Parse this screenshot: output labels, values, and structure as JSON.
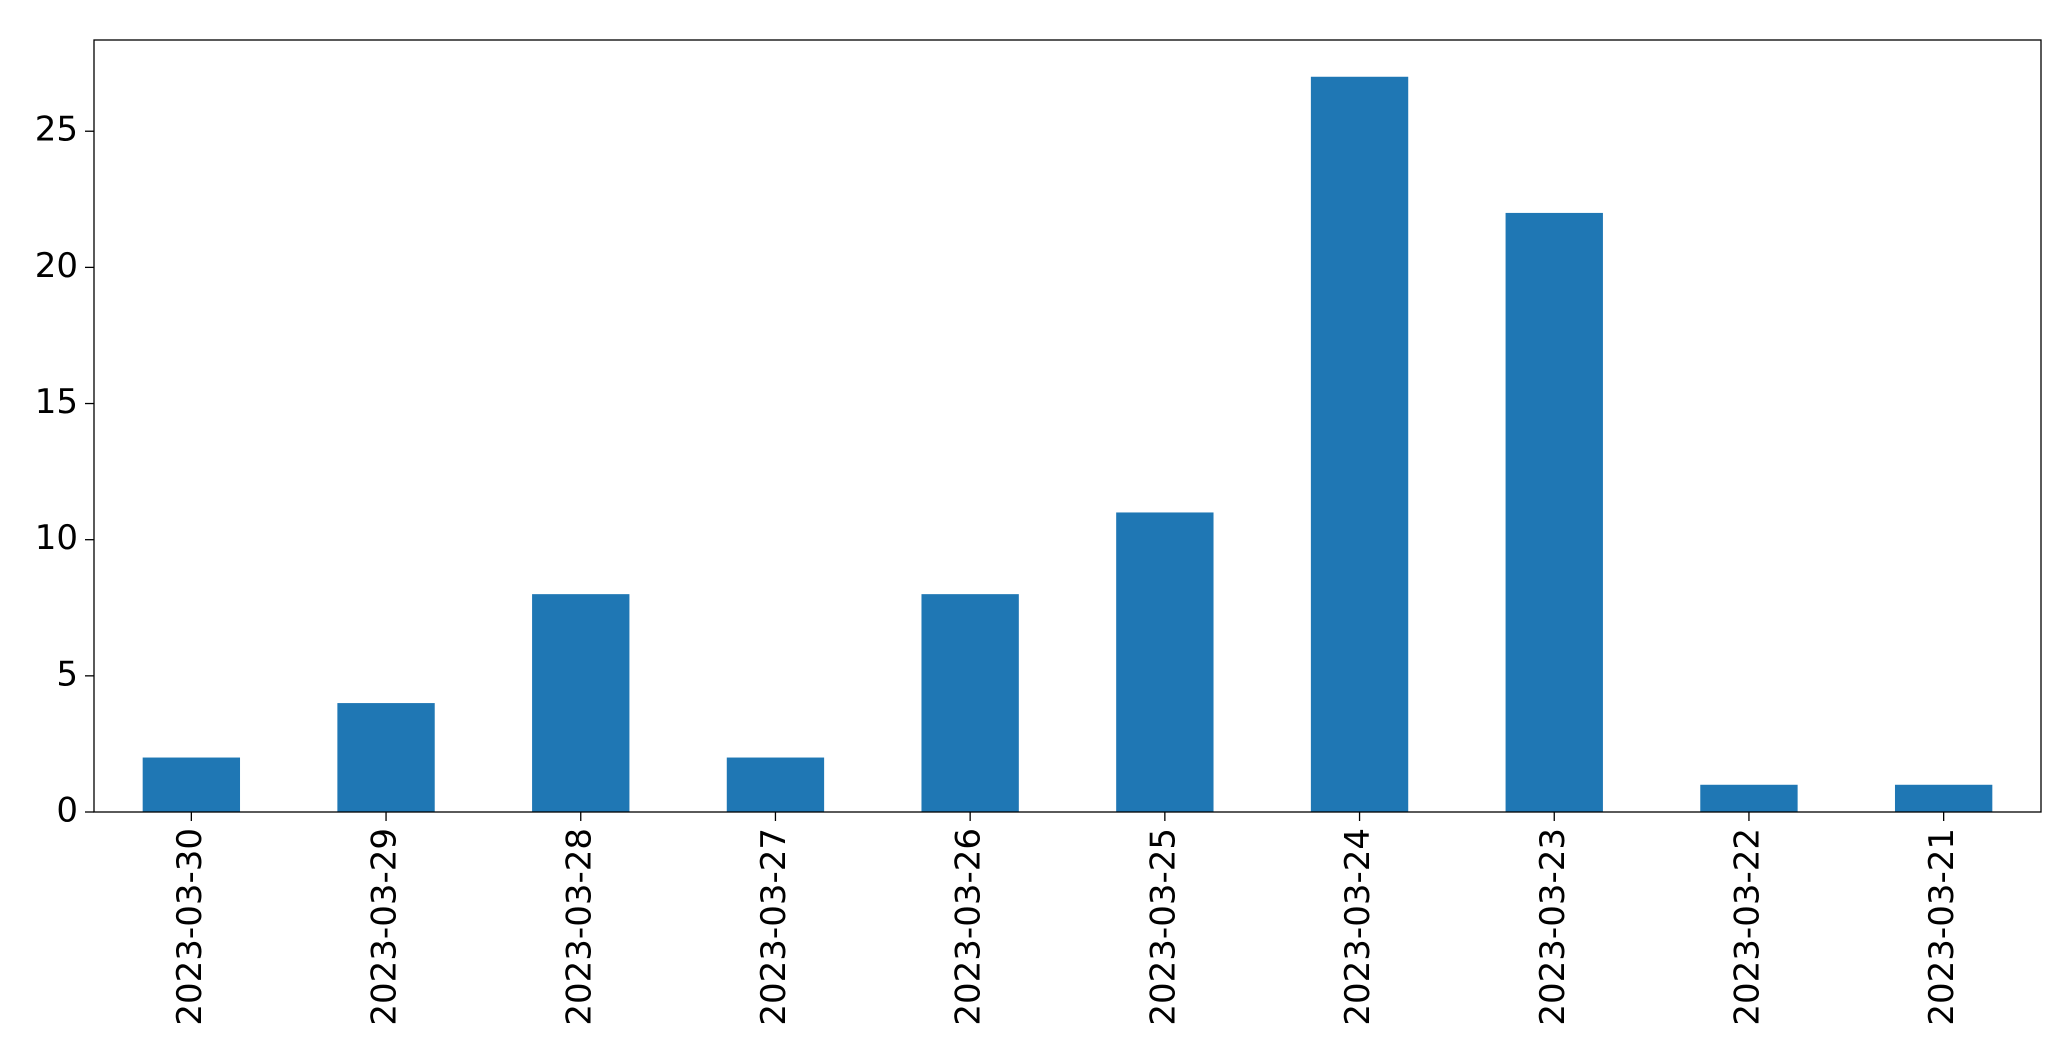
{
  "chart_data": {
    "type": "bar",
    "categories": [
      "2023-03-30",
      "2023-03-29",
      "2023-03-28",
      "2023-03-27",
      "2023-03-26",
      "2023-03-25",
      "2023-03-24",
      "2023-03-23",
      "2023-03-22",
      "2023-03-21"
    ],
    "values": [
      2,
      4,
      8,
      2,
      8,
      11,
      27,
      22,
      1,
      1
    ],
    "color": "#1f77b4",
    "ylim": [
      0,
      28.35
    ],
    "yticks": [
      0,
      5,
      10,
      15,
      20,
      25
    ],
    "grid": false
  }
}
